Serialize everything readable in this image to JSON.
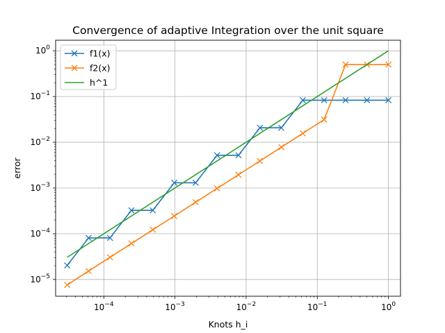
{
  "chart_data": {
    "type": "line",
    "title": "Convergence of adaptive Integration over the unit square",
    "xlabel": "Knots h_i",
    "ylabel": "error",
    "xscale": "log",
    "yscale": "log",
    "xlim": [
      2.1e-05,
      1.48
    ],
    "ylim": [
      4.3e-06,
      1.7
    ],
    "grid": true,
    "legend_position": "top-left",
    "x_ticks": [
      {
        "value": 0.0001,
        "base": "10",
        "exp": "−4"
      },
      {
        "value": 0.001,
        "base": "10",
        "exp": "−3"
      },
      {
        "value": 0.01,
        "base": "10",
        "exp": "−2"
      },
      {
        "value": 0.1,
        "base": "10",
        "exp": "−1"
      },
      {
        "value": 1,
        "base": "10",
        "exp": "0"
      }
    ],
    "y_ticks": [
      {
        "value": 1e-05,
        "base": "10",
        "exp": "−5"
      },
      {
        "value": 0.0001,
        "base": "10",
        "exp": "−4"
      },
      {
        "value": 0.001,
        "base": "10",
        "exp": "−3"
      },
      {
        "value": 0.01,
        "base": "10",
        "exp": "−2"
      },
      {
        "value": 0.1,
        "base": "10",
        "exp": "−1"
      },
      {
        "value": 1,
        "base": "10",
        "exp": "0"
      }
    ],
    "series": [
      {
        "name": "f1(x)",
        "color": "#1f77b4",
        "marker": "x",
        "x": [
          1,
          0.5,
          0.25,
          0.125,
          0.0625,
          0.03125,
          0.015625,
          0.0078125,
          0.00390625,
          0.001953125,
          0.0009765625,
          0.00048828125,
          0.000244140625,
          0.0001220703125,
          6.103515625e-05,
          3.0517578125e-05
        ],
        "y": [
          0.083,
          0.083,
          0.083,
          0.083,
          0.083,
          0.0207,
          0.0207,
          0.0052,
          0.0052,
          0.0013,
          0.0013,
          0.000325,
          0.000325,
          8.1e-05,
          8.1e-05,
          2.03e-05
        ]
      },
      {
        "name": "f2(x)",
        "color": "#ff7f0e",
        "marker": "x",
        "x": [
          1,
          0.5,
          0.25,
          0.125,
          0.0625,
          0.03125,
          0.015625,
          0.0078125,
          0.00390625,
          0.001953125,
          0.0009765625,
          0.00048828125,
          0.000244140625,
          0.0001220703125,
          6.103515625e-05,
          3.0517578125e-05
        ],
        "y": [
          0.5,
          0.5,
          0.5,
          0.0313,
          0.0156,
          0.0078,
          0.0039,
          0.00195,
          0.00098,
          0.00049,
          0.000244,
          0.000122,
          6.1e-05,
          3.05e-05,
          1.53e-05,
          7.6e-06
        ]
      },
      {
        "name": "h^1",
        "color": "#2ca02c",
        "marker": "none",
        "x": [
          1,
          3.0517578125e-05
        ],
        "y": [
          1,
          3.0517578125e-05
        ]
      }
    ]
  }
}
